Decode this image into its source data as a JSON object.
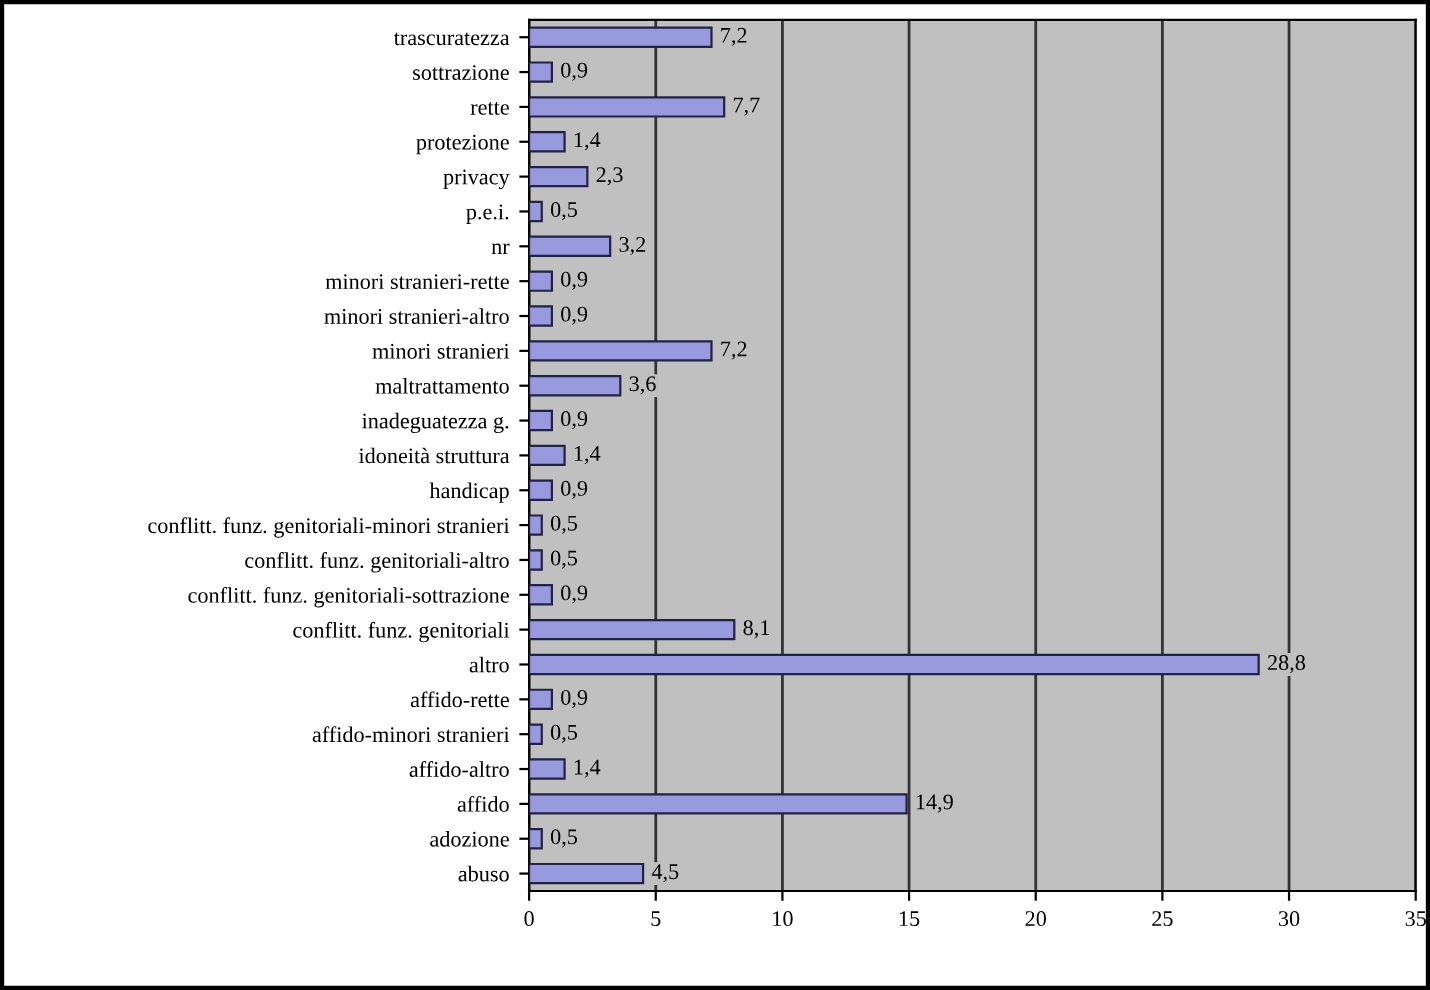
{
  "chart_data": {
    "type": "bar",
    "orientation": "horizontal",
    "categories": [
      "trascuratezza",
      "sottrazione",
      "rette",
      "protezione",
      "privacy",
      "p.e.i.",
      "nr",
      "minori stranieri-rette",
      "minori stranieri-altro",
      "minori stranieri",
      "maltrattamento",
      "inadeguatezza g.",
      "idoneità struttura",
      "handicap",
      "conflitt. funz. genitoriali-minori stranieri",
      "conflitt. funz. genitoriali-altro",
      "conflitt. funz. genitoriali-sottrazione",
      "conflitt. funz. genitoriali",
      "altro",
      "affido-rette",
      "affido-minori stranieri",
      "affido-altro",
      "affido",
      "adozione",
      "abuso"
    ],
    "values": [
      7.2,
      0.9,
      7.7,
      1.4,
      2.3,
      0.5,
      3.2,
      0.9,
      0.9,
      7.2,
      3.6,
      0.9,
      1.4,
      0.9,
      0.5,
      0.5,
      0.9,
      8.1,
      28.8,
      0.9,
      0.5,
      1.4,
      14.9,
      0.5,
      4.5
    ],
    "value_labels": [
      "7,2",
      "0,9",
      "7,7",
      "1,4",
      "2,3",
      "0,5",
      "3,2",
      "0,9",
      "0,9",
      "7,2",
      "3,6",
      "0,9",
      "1,4",
      "0,9",
      "0,5",
      "0,5",
      "0,9",
      "8,1",
      "28,8",
      "0,9",
      "0,5",
      "1,4",
      "14,9",
      "0,5",
      "4,5"
    ],
    "color": "#9999dd",
    "xlim": [
      0,
      35
    ],
    "xticks": [
      0,
      5,
      10,
      15,
      20,
      25,
      30,
      35
    ],
    "grid": "x",
    "legend": false
  }
}
